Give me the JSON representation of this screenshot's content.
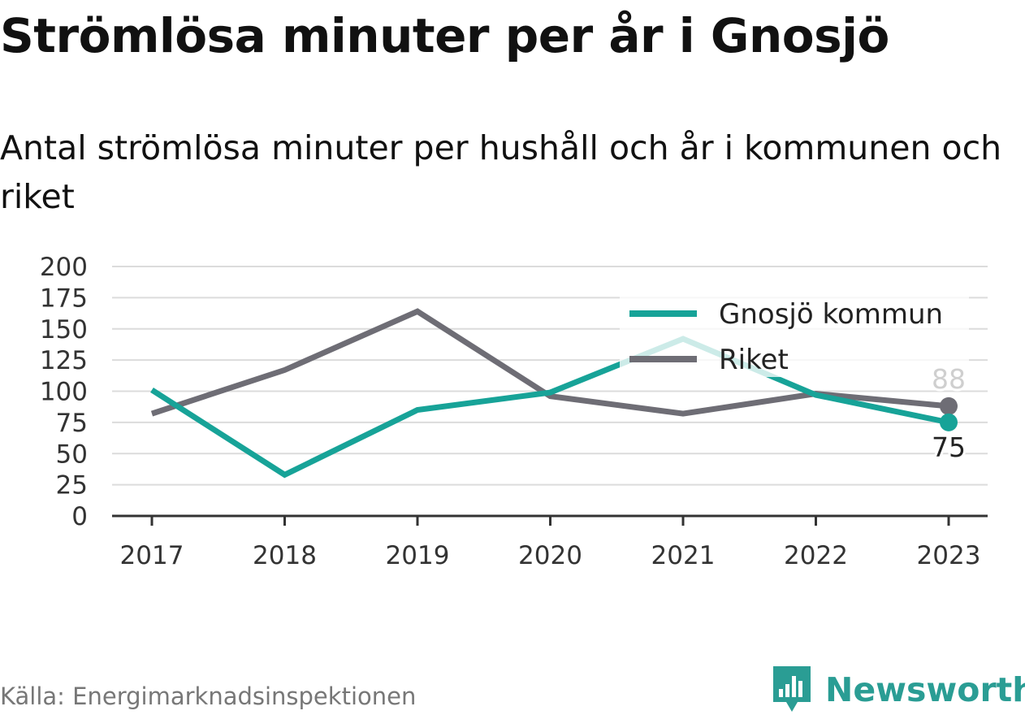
{
  "title": "Strömlösa minuter per år i Gnosjö",
  "subtitle": "Antal strömlösa minuter per hushåll och år i kommunen och riket",
  "source": "Källa: Energimarknadsinspektionen",
  "brand": "Newsworthy",
  "colors": {
    "gnosjo": "#17a398",
    "riket": "#6e6d75",
    "grid": "#dcdcdc",
    "axis": "#333333",
    "brand": "#2a9d94"
  },
  "chart_data": {
    "type": "line",
    "x": [
      "2017",
      "2018",
      "2019",
      "2020",
      "2021",
      "2022",
      "2023"
    ],
    "ylim": [
      0,
      200
    ],
    "yticks": [
      0,
      25,
      50,
      75,
      100,
      125,
      150,
      175,
      200
    ],
    "grid": true,
    "legend_position": "top-right",
    "series": [
      {
        "name": "Gnosjö kommun",
        "values": [
          101,
          33,
          85,
          99,
          142,
          97,
          75
        ],
        "end_label": "75"
      },
      {
        "name": "Riket",
        "values": [
          82,
          117,
          164,
          96,
          82,
          98,
          88
        ],
        "end_label": "88"
      }
    ]
  }
}
